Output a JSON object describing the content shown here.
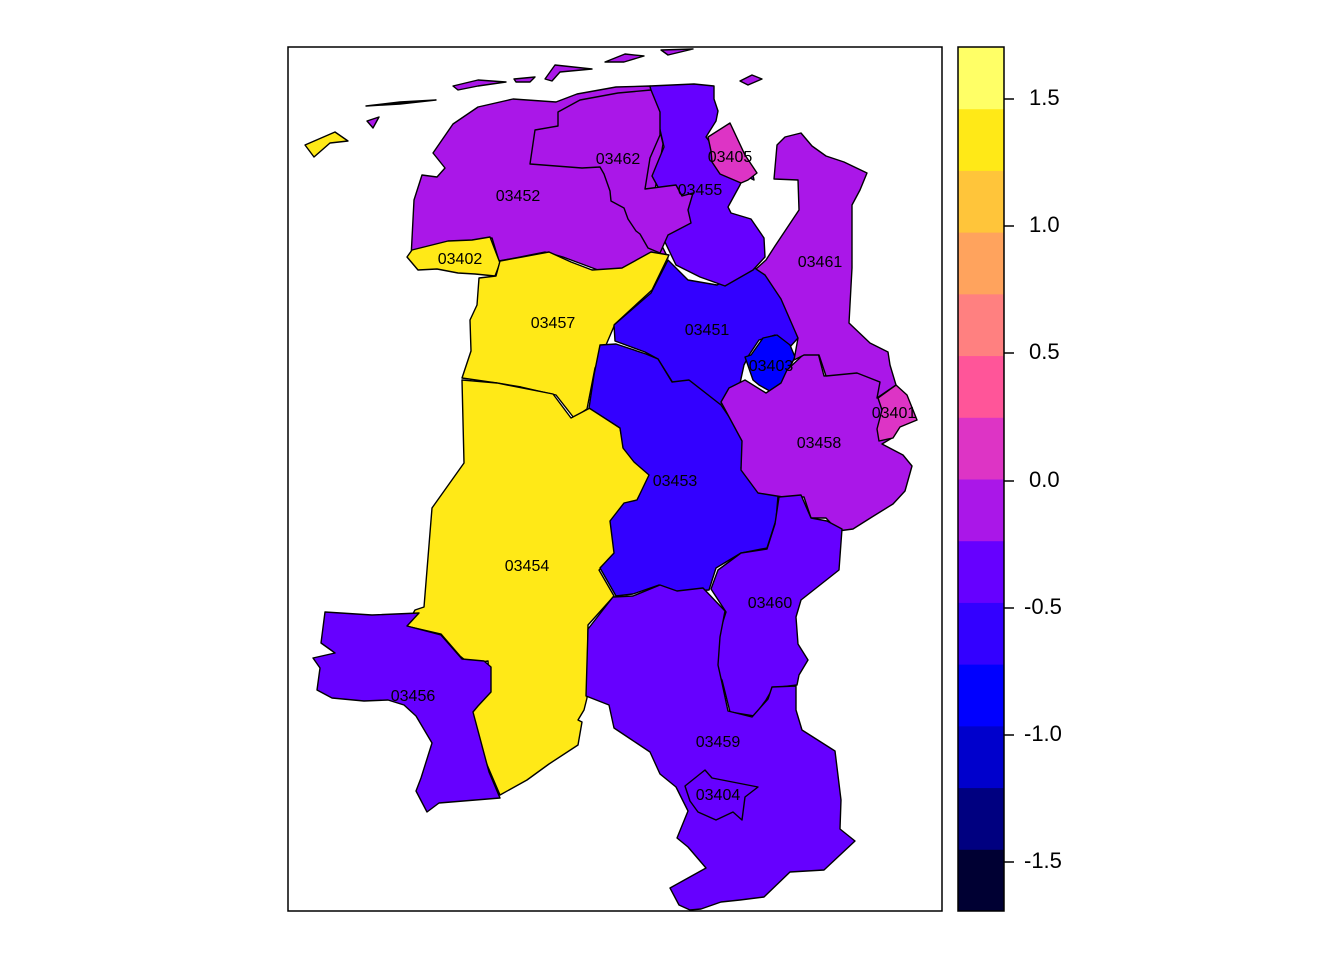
{
  "map": {
    "regions": [
      {
        "id": "03401",
        "label": "03401",
        "value": 0.2
      },
      {
        "id": "03402",
        "label": "03402",
        "value": 1.4
      },
      {
        "id": "03403",
        "label": "03403",
        "value": -0.9
      },
      {
        "id": "03404",
        "label": "03404",
        "value": -0.3
      },
      {
        "id": "03405",
        "label": "03405",
        "value": 0.2
      },
      {
        "id": "03451",
        "label": "03451",
        "value": -0.6
      },
      {
        "id": "03452",
        "label": "03452",
        "value": -0.1
      },
      {
        "id": "03453",
        "label": "03453",
        "value": -0.6
      },
      {
        "id": "03454",
        "label": "03454",
        "value": 1.4
      },
      {
        "id": "03455",
        "label": "03455",
        "value": -0.3
      },
      {
        "id": "03456",
        "label": "03456",
        "value": -0.3
      },
      {
        "id": "03457",
        "label": "03457",
        "value": 1.4
      },
      {
        "id": "03458",
        "label": "03458",
        "value": -0.1
      },
      {
        "id": "03459",
        "label": "03459",
        "value": -0.3
      },
      {
        "id": "03460",
        "label": "03460",
        "value": -0.3
      },
      {
        "id": "03461",
        "label": "03461",
        "value": -0.1
      },
      {
        "id": "03462",
        "label": "03462",
        "value": -0.1
      }
    ]
  },
  "legend": {
    "ticks": [
      "1.5",
      "1.0",
      "0.5",
      "0.0",
      "-0.5",
      "-1.0",
      "-1.5"
    ],
    "colors": [
      "#000033",
      "#000080",
      "#0000CC",
      "#0000FF",
      "#3300FF",
      "#6600FF",
      "#AA17E8",
      "#DD34C5",
      "#FF5599",
      "#FF8080",
      "#FFA35D",
      "#FFC53A",
      "#FFE917",
      "#FFFF66"
    ]
  }
}
